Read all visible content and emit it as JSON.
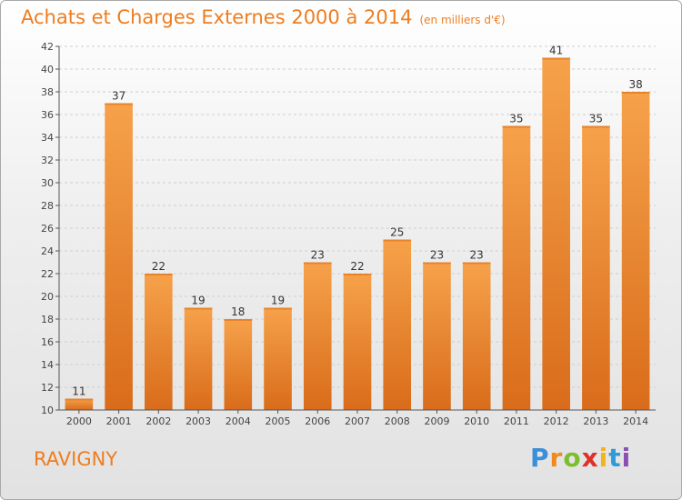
{
  "title": "Achats et Charges Externes 2000 à 2014",
  "subtitle": "(en milliers d'€)",
  "commune": "RAVIGNY",
  "logo": {
    "letters": [
      "P",
      "r",
      "o",
      "x",
      "i",
      "t",
      "i"
    ],
    "colors": [
      "#3a8fd9",
      "#f08a1c",
      "#7cbf2e",
      "#e0302a",
      "#f2b419",
      "#2e9bd6",
      "#8a4fb3"
    ]
  },
  "colors": {
    "bar": "#f39a3f",
    "bar_dark": "#d2691a",
    "text": "#ee7d1f",
    "axis": "#555555"
  },
  "chart_data": {
    "type": "bar",
    "categories": [
      "2000",
      "2001",
      "2002",
      "2003",
      "2004",
      "2005",
      "2006",
      "2007",
      "2008",
      "2009",
      "2010",
      "2011",
      "2012",
      "2013",
      "2014"
    ],
    "values": [
      11,
      37,
      22,
      19,
      18,
      19,
      23,
      22,
      25,
      23,
      23,
      35,
      41,
      35,
      38
    ],
    "ylim": [
      10,
      42
    ],
    "yticks": [
      10,
      12,
      14,
      16,
      18,
      20,
      22,
      24,
      26,
      28,
      30,
      32,
      34,
      36,
      38,
      40,
      42
    ],
    "grid": true
  }
}
